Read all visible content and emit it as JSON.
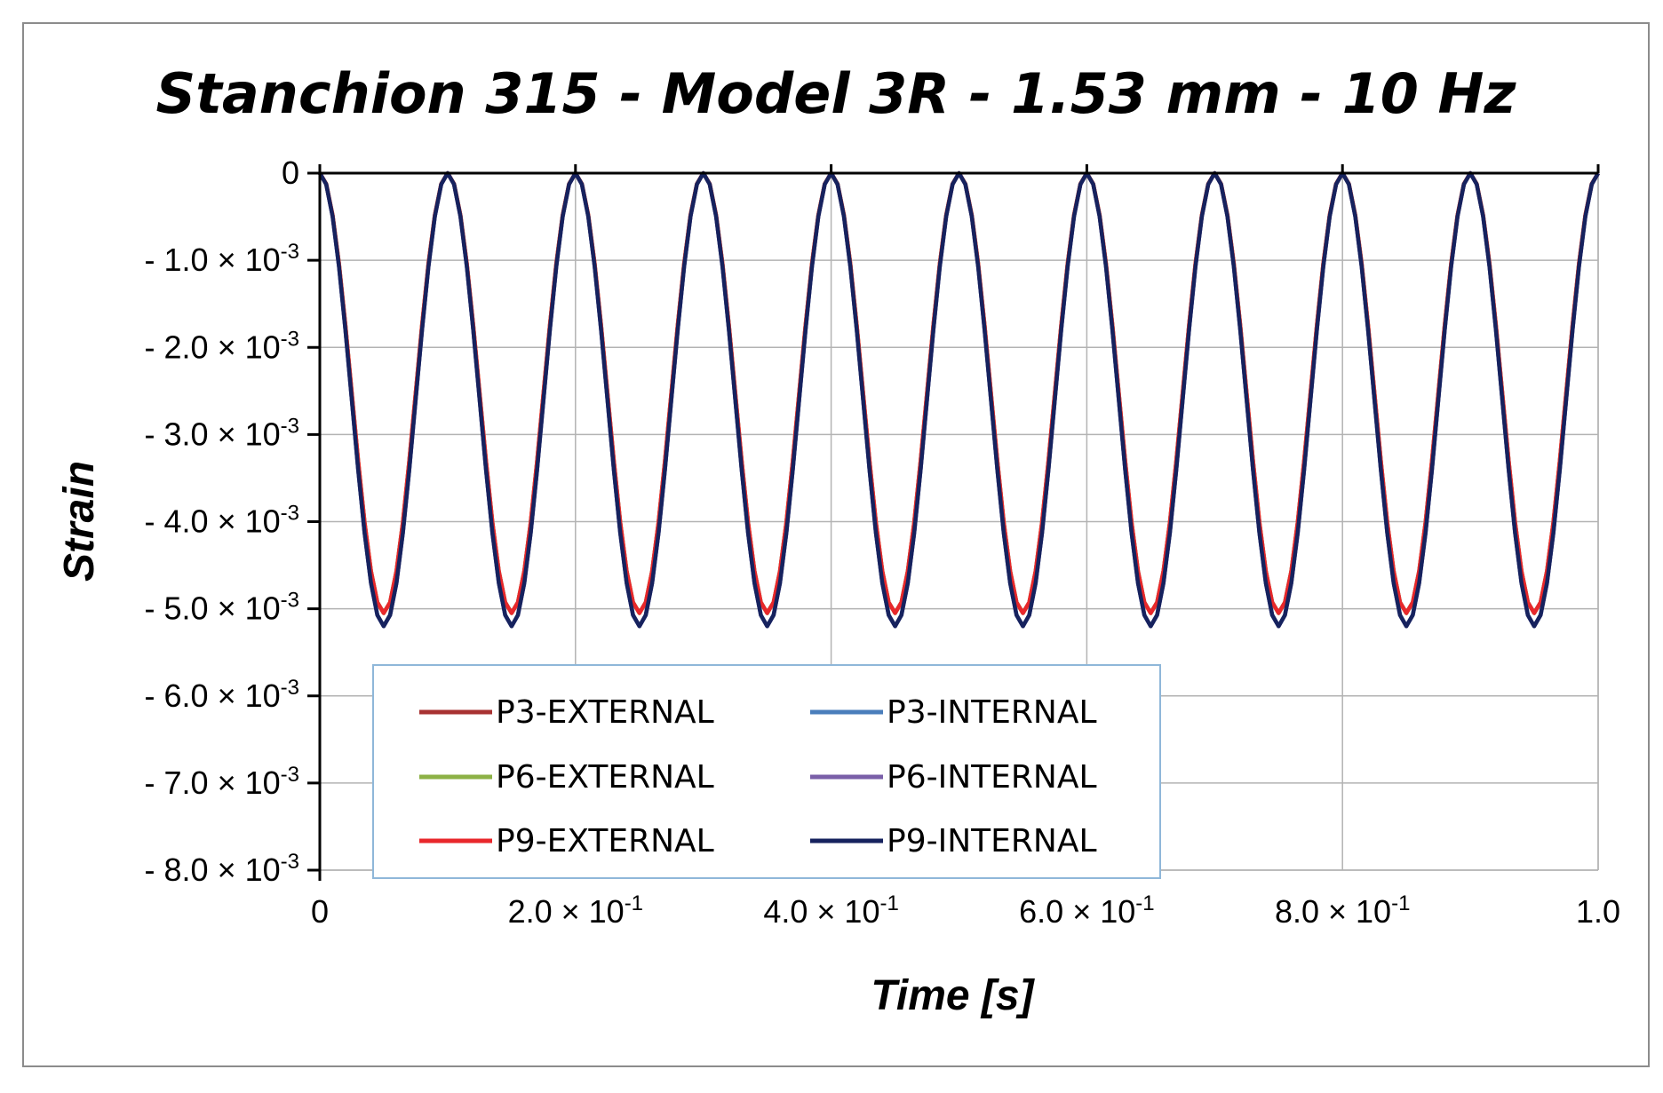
{
  "chart_data": {
    "type": "line",
    "title": "Stanchion 315 - Model 3R - 1.53 mm - 10 Hz",
    "xlabel": "Time [s]",
    "ylabel": "Strain",
    "xlim": [
      0,
      1.0
    ],
    "ylim": [
      -0.008,
      0
    ],
    "grid": true,
    "x_ticks": [
      {
        "value": 0,
        "mantissa": "0",
        "exp": ""
      },
      {
        "value": 0.2,
        "mantissa": "2.0 × 10",
        "exp": "-1"
      },
      {
        "value": 0.4,
        "mantissa": "4.0 × 10",
        "exp": "-1"
      },
      {
        "value": 0.6,
        "mantissa": "6.0 × 10",
        "exp": "-1"
      },
      {
        "value": 0.8,
        "mantissa": "8.0 × 10",
        "exp": "-1"
      },
      {
        "value": 1.0,
        "mantissa": "1.0",
        "exp": ""
      }
    ],
    "y_ticks": [
      {
        "value": 0,
        "mantissa": "0",
        "exp": ""
      },
      {
        "value": -0.001,
        "mantissa": "- 1.0 × 10",
        "exp": "-3"
      },
      {
        "value": -0.002,
        "mantissa": "- 2.0 × 10",
        "exp": "-3"
      },
      {
        "value": -0.003,
        "mantissa": "- 3.0 × 10",
        "exp": "-3"
      },
      {
        "value": -0.004,
        "mantissa": "- 4.0 × 10",
        "exp": "-3"
      },
      {
        "value": -0.005,
        "mantissa": "- 5.0 × 10",
        "exp": "-3"
      },
      {
        "value": -0.006,
        "mantissa": "- 6.0 × 10",
        "exp": "-3"
      },
      {
        "value": -0.007,
        "mantissa": "- 7.0 × 10",
        "exp": "-3"
      },
      {
        "value": -0.008,
        "mantissa": "- 8.0 × 10",
        "exp": "-3"
      }
    ],
    "legend_position": "bottom-left",
    "series": [
      {
        "name": "P3-EXTERNAL",
        "color": "#a83232",
        "frequency_hz": 10,
        "min_strain": -0.00505,
        "max_strain": 0
      },
      {
        "name": "P3-INTERNAL",
        "color": "#4a7ebb",
        "frequency_hz": 10,
        "min_strain": -0.0052,
        "max_strain": 0
      },
      {
        "name": "P6-EXTERNAL",
        "color": "#8db146",
        "frequency_hz": 10,
        "min_strain": -0.00505,
        "max_strain": 0
      },
      {
        "name": "P6-INTERNAL",
        "color": "#7a5fa8",
        "frequency_hz": 10,
        "min_strain": -0.0052,
        "max_strain": 0
      },
      {
        "name": "P9-EXTERNAL",
        "color": "#e8272b",
        "frequency_hz": 10,
        "min_strain": -0.00505,
        "max_strain": 0
      },
      {
        "name": "P9-INTERNAL",
        "color": "#16225e",
        "frequency_hz": 10,
        "min_strain": -0.0052,
        "max_strain": 0
      }
    ]
  }
}
